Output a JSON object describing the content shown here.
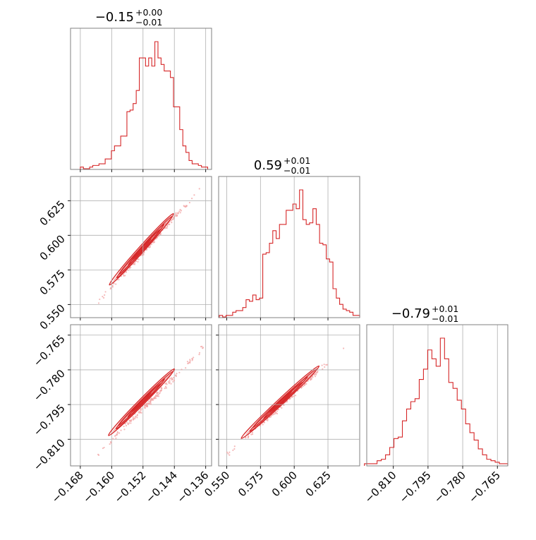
{
  "chart_data": [
    {
      "type": "histogram",
      "panel": "diag-0",
      "title": {
        "median": "−0.15",
        "plus": "+0.00",
        "minus": "−0.01"
      },
      "xlim": [
        -0.1705,
        -0.1345
      ],
      "x_ticks": [
        "−0.168",
        "−0.160",
        "−0.152",
        "−0.144",
        "−0.136"
      ],
      "x_tick_values": [
        -0.168,
        -0.16,
        -0.152,
        -0.144,
        -0.136
      ],
      "grid": true,
      "bin_edges_range": [
        -0.168,
        -0.1355
      ],
      "counts": [
        1,
        0,
        0,
        1,
        2,
        2,
        3,
        3,
        6,
        6,
        11,
        14,
        14,
        20,
        20,
        35,
        36,
        40,
        48,
        68,
        68,
        63,
        68,
        63,
        78,
        68,
        64,
        60,
        60,
        56,
        38,
        38,
        24,
        14,
        10,
        5,
        3,
        3,
        2,
        1,
        1
      ]
    },
    {
      "type": "histogram",
      "panel": "diag-1",
      "title": {
        "median": "0.59",
        "plus": "+0.01",
        "minus": "−0.01"
      },
      "xlim": [
        0.544,
        0.6485
      ],
      "x_ticks": [
        "0.550",
        "0.575",
        "0.600",
        "0.625"
      ],
      "x_tick_values": [
        0.55,
        0.575,
        0.6,
        0.625
      ],
      "grid": true,
      "bin_edges_range": [
        0.5445,
        0.6485
      ],
      "counts": [
        1,
        0,
        1,
        1,
        3,
        4,
        4,
        6,
        11,
        10,
        14,
        11,
        12,
        40,
        41,
        47,
        55,
        50,
        59,
        59,
        68,
        68,
        72,
        69,
        81,
        62,
        59,
        60,
        69,
        59,
        47,
        46,
        37,
        35,
        18,
        12,
        8,
        5,
        4,
        3,
        1,
        1
      ]
    },
    {
      "type": "histogram",
      "panel": "diag-2",
      "title": {
        "median": "−0.79",
        "plus": "+0.01",
        "minus": "−0.01"
      },
      "xlim": [
        -0.8215,
        -0.7605
      ],
      "x_ticks": [
        "−0.810",
        "−0.795",
        "−0.780",
        "−0.765"
      ],
      "x_tick_values": [
        -0.81,
        -0.795,
        -0.78,
        -0.765
      ],
      "grid": true,
      "bin_edges_range": [
        -0.8225,
        -0.7605
      ],
      "counts": [
        1,
        1,
        1,
        3,
        4,
        7,
        12,
        18,
        19,
        30,
        38,
        43,
        45,
        58,
        65,
        78,
        72,
        67,
        86,
        72,
        56,
        52,
        44,
        38,
        28,
        22,
        17,
        11,
        7,
        4,
        3,
        2,
        1,
        1
      ]
    },
    {
      "type": "scatter",
      "panel": "cov-1-0",
      "xlim": [
        -0.1705,
        -0.1345
      ],
      "ylim": [
        0.5405,
        0.6425
      ],
      "y_ticks": [
        "0.550",
        "0.575",
        "0.600",
        "0.625"
      ],
      "y_tick_values": [
        0.55,
        0.575,
        0.6,
        0.625
      ],
      "grid": true,
      "relation": {
        "x_from": [
          -0.1635,
          -0.1366
        ],
        "y_from": [
          0.5515,
          0.6362
        ]
      },
      "contour_extent": {
        "x": [
          -0.1593,
          -0.1449
        ],
        "y": [
          0.5625,
          0.6185
        ]
      }
    },
    {
      "type": "scatter",
      "panel": "cov-2-0",
      "xlim": [
        -0.1705,
        -0.1345
      ],
      "ylim": [
        -0.8215,
        -0.7605
      ],
      "y_ticks": [
        "−0.765",
        "−0.780",
        "−0.795",
        "−0.810"
      ],
      "y_tick_values": [
        -0.765,
        -0.78,
        -0.795,
        -0.81
      ],
      "x_ticks": [
        "−0.168",
        "−0.160",
        "−0.152",
        "−0.144",
        "−0.136"
      ],
      "x_tick_values": [
        -0.168,
        -0.16,
        -0.152,
        -0.144,
        -0.136
      ],
      "grid": true,
      "relation": {
        "x_from": [
          -0.1635,
          -0.1366
        ],
        "y_from": [
          -0.8165,
          -0.7705
        ]
      },
      "contour_extent": {
        "x": [
          -0.1593,
          -0.1449
        ],
        "y": [
          -0.8098,
          -0.7775
        ]
      }
    },
    {
      "type": "scatter",
      "panel": "cov-2-1",
      "xlim": [
        0.544,
        0.6485
      ],
      "ylim": [
        -0.8215,
        -0.7605
      ],
      "x_ticks": [
        "0.550",
        "0.575",
        "0.600",
        "0.625"
      ],
      "x_tick_values": [
        0.55,
        0.575,
        0.6,
        0.625
      ],
      "grid": true,
      "relation": {
        "x_from": [
          0.5515,
          0.6362
        ],
        "y_from": [
          -0.8165,
          -0.7705
        ]
      },
      "contour_extent": {
        "x": [
          0.5625,
          0.6185
        ],
        "y": [
          -0.8098,
          -0.7775
        ]
      }
    }
  ],
  "colors": {
    "series": "#d62728",
    "samples": "#f2a3a3",
    "grid": "#b0b0b0",
    "frame": "#808080"
  }
}
